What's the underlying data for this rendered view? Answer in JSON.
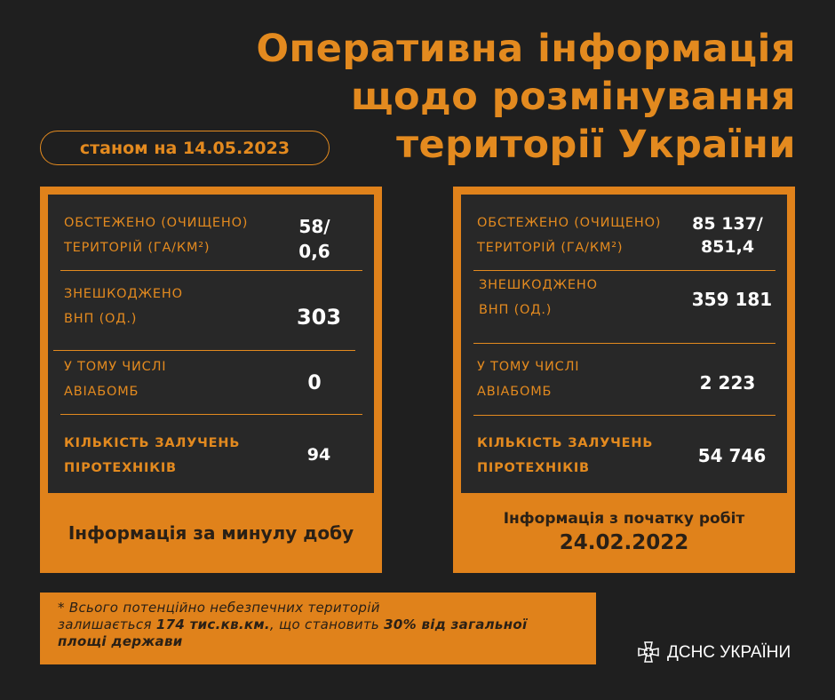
{
  "title": {
    "lines": [
      "Оперативна інформація",
      "щодо розмінування",
      "території України"
    ]
  },
  "date_pill": "станом на 14.05.2023",
  "daily": {
    "rows": [
      {
        "label1": "ОБСТЕЖЕНО (ОЧИЩЕНО)",
        "label2": "ТЕРИТОРІЙ (ГА/КМ²)",
        "value1": "58/",
        "value2": "0,6"
      },
      {
        "label1": "ЗНЕШКОДЖЕНО",
        "label2": "ВНП (ОД.)",
        "value": "303"
      },
      {
        "label1": "У ТОМУ ЧИСЛІ",
        "label2": "АВІАБОМБ",
        "value": "0"
      },
      {
        "label1": "КІЛЬКІСТЬ ЗАЛУЧЕНЬ",
        "label2": "ПІРОТЕХНІКІВ",
        "value": "94"
      }
    ],
    "caption": "Інформація за минулу добу"
  },
  "total": {
    "rows": [
      {
        "label1": "ОБСТЕЖЕНО (ОЧИЩЕНО)",
        "label2": "ТЕРИТОРІЙ (ГА/КМ²)",
        "value1": "85 137/",
        "value2": "851,4"
      },
      {
        "label1": "ЗНЕШКОДЖЕНО",
        "label2": "ВНП (ОД.)",
        "value": "359 181"
      },
      {
        "label1": "У ТОМУ ЧИСЛІ",
        "label2": "АВІАБОМБ",
        "value": "2 223"
      },
      {
        "label1": "КІЛЬКІСТЬ ЗАЛУЧЕНЬ",
        "label2": "ПІРОТЕХНІКІВ",
        "value": "54 746"
      }
    ],
    "caption1": "Інформація з початку робіт",
    "caption2": "24.02.2022"
  },
  "note": {
    "t1": "* Всього потенційно небезпечних територій",
    "t2": "залишається ",
    "b1": "174 тис.кв.км.",
    "t3": ", що становить ",
    "b2": "30% від загальної",
    "b3": "площі держави"
  },
  "logo": {
    "text": "ДСНС УКРАЇНИ",
    "icon": "dsns-emblem-icon"
  },
  "colors": {
    "background": "#1f1f1f",
    "accent": "#e0821b",
    "panel": "#282828"
  }
}
